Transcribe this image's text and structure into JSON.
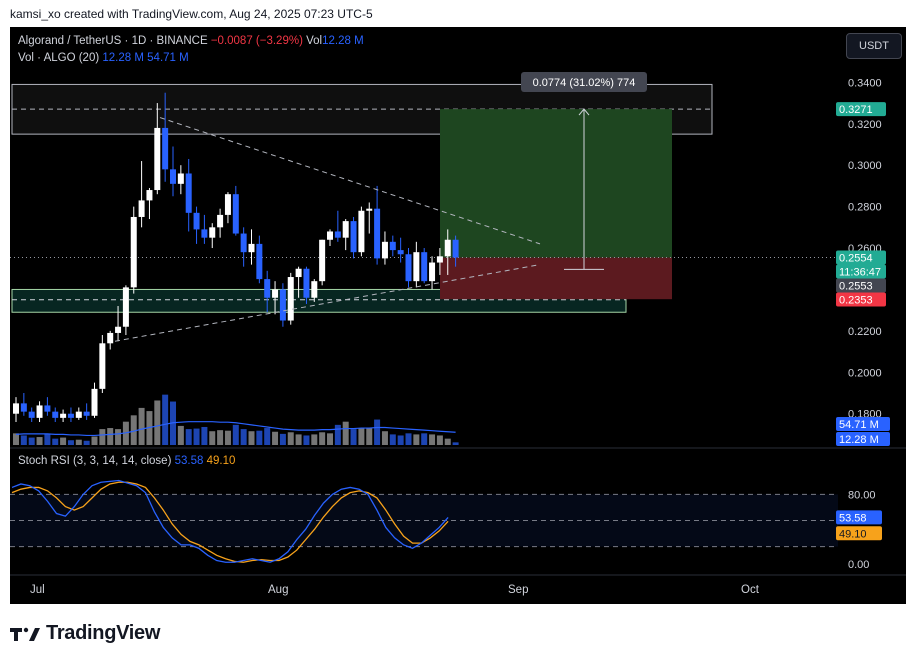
{
  "caption": "kamsi_xo created with TradingView.com, Aug 24, 2025 07:23 UTC-5",
  "header": {
    "symbol": "Algorand / TetherUS · 1D · BINANCE",
    "change": "−0.0087 (−3.29%)",
    "vol_label": "Vol",
    "vol_value": "12.28 M",
    "vol_indicator": "Vol · ALGO (20)",
    "vol_val_1": "12.28 M",
    "vol_val_2": "54.71 M"
  },
  "currency_button": "USDT",
  "stoch_header": {
    "label": "Stoch RSI (3, 3, 14, 14, close)",
    "k_value": "53.58",
    "d_value": "49.10"
  },
  "measure_label": "0.0774 (31.02%) 774",
  "price_axis": {
    "ticks": [
      "0.3400",
      "0.3200",
      "0.3000",
      "0.2800",
      "0.2600",
      "0.2200",
      "0.2000",
      "0.1800"
    ],
    "tick_values": [
      0.34,
      0.32,
      0.3,
      0.28,
      0.26,
      0.22,
      0.2,
      0.18
    ],
    "badges": [
      {
        "text": "0.3271",
        "value": 0.3271,
        "color": "#22ab94"
      },
      {
        "text": "0.2554",
        "value": 0.2554,
        "color": "#22ab94"
      },
      {
        "text": "11:36:47",
        "value": 0.2554,
        "color": "#22ab94"
      },
      {
        "text": "0.2553",
        "value": 0.2553,
        "color": "#434651"
      },
      {
        "text": "0.2353",
        "value": 0.2353,
        "color": "#f23645"
      }
    ],
    "vol_badges": [
      {
        "text": "54.71 M",
        "color": "#2962ff"
      },
      {
        "text": "12.28 M",
        "color": "#2962ff"
      }
    ]
  },
  "rsi_axis": {
    "ticks": [
      "80.00",
      "0.00"
    ],
    "tick_values": [
      80,
      0
    ],
    "badges": [
      {
        "text": "53.58",
        "value": 53.58,
        "color": "#2962ff"
      },
      {
        "text": "49.10",
        "value": 49.1,
        "color": "#f7a21b"
      }
    ]
  },
  "time_axis": [
    "Jul",
    "Aug",
    "Sep",
    "Oct"
  ],
  "brand": "TradingView",
  "colors": {
    "up": "#ffffff",
    "down": "#2962ff",
    "vol_up": "#9e9e9e",
    "vol_down": "#2962ff",
    "stoch_k": "#2962ff",
    "stoch_d": "#f7a21b",
    "profit_zone": "#1e4620",
    "loss_zone": "#5c1a1f"
  },
  "chart_data": {
    "type": "candlestick",
    "title": "Algorand / TetherUS · 1D · BINANCE",
    "ylim": [
      0.176,
      0.345
    ],
    "xlabel": "",
    "ylabel": "",
    "x_ticks": [
      "Jul",
      "Aug",
      "Sep",
      "Oct"
    ],
    "candles": [
      {
        "o": 0.18,
        "h": 0.188,
        "l": 0.176,
        "c": 0.185
      },
      {
        "o": 0.185,
        "h": 0.19,
        "l": 0.179,
        "c": 0.181
      },
      {
        "o": 0.181,
        "h": 0.183,
        "l": 0.176,
        "c": 0.178
      },
      {
        "o": 0.178,
        "h": 0.186,
        "l": 0.176,
        "c": 0.184
      },
      {
        "o": 0.184,
        "h": 0.188,
        "l": 0.179,
        "c": 0.181
      },
      {
        "o": 0.181,
        "h": 0.183,
        "l": 0.176,
        "c": 0.178
      },
      {
        "o": 0.178,
        "h": 0.182,
        "l": 0.176,
        "c": 0.18
      },
      {
        "o": 0.18,
        "h": 0.183,
        "l": 0.176,
        "c": 0.178
      },
      {
        "o": 0.178,
        "h": 0.183,
        "l": 0.177,
        "c": 0.181
      },
      {
        "o": 0.181,
        "h": 0.185,
        "l": 0.177,
        "c": 0.179
      },
      {
        "o": 0.179,
        "h": 0.195,
        "l": 0.178,
        "c": 0.192
      },
      {
        "o": 0.192,
        "h": 0.218,
        "l": 0.19,
        "c": 0.214
      },
      {
        "o": 0.214,
        "h": 0.22,
        "l": 0.211,
        "c": 0.219
      },
      {
        "o": 0.219,
        "h": 0.232,
        "l": 0.215,
        "c": 0.222
      },
      {
        "o": 0.222,
        "h": 0.242,
        "l": 0.218,
        "c": 0.241
      },
      {
        "o": 0.241,
        "h": 0.28,
        "l": 0.238,
        "c": 0.275
      },
      {
        "o": 0.275,
        "h": 0.302,
        "l": 0.27,
        "c": 0.283
      },
      {
        "o": 0.283,
        "h": 0.289,
        "l": 0.274,
        "c": 0.288
      },
      {
        "o": 0.288,
        "h": 0.33,
        "l": 0.286,
        "c": 0.318
      },
      {
        "o": 0.318,
        "h": 0.335,
        "l": 0.292,
        "c": 0.298
      },
      {
        "o": 0.298,
        "h": 0.309,
        "l": 0.285,
        "c": 0.291
      },
      {
        "o": 0.291,
        "h": 0.3,
        "l": 0.286,
        "c": 0.296
      },
      {
        "o": 0.296,
        "h": 0.303,
        "l": 0.268,
        "c": 0.277
      },
      {
        "o": 0.277,
        "h": 0.28,
        "l": 0.262,
        "c": 0.269
      },
      {
        "o": 0.269,
        "h": 0.276,
        "l": 0.262,
        "c": 0.265
      },
      {
        "o": 0.265,
        "h": 0.272,
        "l": 0.26,
        "c": 0.27
      },
      {
        "o": 0.27,
        "h": 0.279,
        "l": 0.265,
        "c": 0.276
      },
      {
        "o": 0.276,
        "h": 0.287,
        "l": 0.272,
        "c": 0.286
      },
      {
        "o": 0.286,
        "h": 0.29,
        "l": 0.266,
        "c": 0.267
      },
      {
        "o": 0.267,
        "h": 0.27,
        "l": 0.251,
        "c": 0.258
      },
      {
        "o": 0.258,
        "h": 0.269,
        "l": 0.252,
        "c": 0.262
      },
      {
        "o": 0.262,
        "h": 0.266,
        "l": 0.243,
        "c": 0.245
      },
      {
        "o": 0.245,
        "h": 0.249,
        "l": 0.229,
        "c": 0.236
      },
      {
        "o": 0.236,
        "h": 0.244,
        "l": 0.228,
        "c": 0.24
      },
      {
        "o": 0.24,
        "h": 0.243,
        "l": 0.222,
        "c": 0.225
      },
      {
        "o": 0.225,
        "h": 0.248,
        "l": 0.223,
        "c": 0.246
      },
      {
        "o": 0.246,
        "h": 0.251,
        "l": 0.236,
        "c": 0.25
      },
      {
        "o": 0.25,
        "h": 0.251,
        "l": 0.233,
        "c": 0.236
      },
      {
        "o": 0.236,
        "h": 0.245,
        "l": 0.234,
        "c": 0.244
      },
      {
        "o": 0.244,
        "h": 0.264,
        "l": 0.242,
        "c": 0.264
      },
      {
        "o": 0.264,
        "h": 0.269,
        "l": 0.261,
        "c": 0.268
      },
      {
        "o": 0.268,
        "h": 0.278,
        "l": 0.263,
        "c": 0.265
      },
      {
        "o": 0.265,
        "h": 0.274,
        "l": 0.259,
        "c": 0.273
      },
      {
        "o": 0.273,
        "h": 0.275,
        "l": 0.255,
        "c": 0.258
      },
      {
        "o": 0.258,
        "h": 0.28,
        "l": 0.256,
        "c": 0.278
      },
      {
        "o": 0.278,
        "h": 0.282,
        "l": 0.267,
        "c": 0.279
      },
      {
        "o": 0.279,
        "h": 0.29,
        "l": 0.252,
        "c": 0.255
      },
      {
        "o": 0.255,
        "h": 0.268,
        "l": 0.252,
        "c": 0.263
      },
      {
        "o": 0.263,
        "h": 0.266,
        "l": 0.256,
        "c": 0.259
      },
      {
        "o": 0.259,
        "h": 0.265,
        "l": 0.253,
        "c": 0.257
      },
      {
        "o": 0.257,
        "h": 0.26,
        "l": 0.241,
        "c": 0.244
      },
      {
        "o": 0.244,
        "h": 0.263,
        "l": 0.241,
        "c": 0.258
      },
      {
        "o": 0.258,
        "h": 0.26,
        "l": 0.243,
        "c": 0.244
      },
      {
        "o": 0.244,
        "h": 0.256,
        "l": 0.24,
        "c": 0.253
      },
      {
        "o": 0.253,
        "h": 0.26,
        "l": 0.247,
        "c": 0.256
      },
      {
        "o": 0.256,
        "h": 0.269,
        "l": 0.247,
        "c": 0.264
      },
      {
        "o": 0.264,
        "h": 0.266,
        "l": 0.251,
        "c": 0.2554
      }
    ],
    "volume_series": [
      {
        "name": "Volume",
        "values": [
          22,
          18,
          14,
          15,
          20,
          12,
          14,
          9,
          10,
          8,
          16,
          30,
          32,
          30,
          44,
          56,
          70,
          64,
          84,
          95,
          82,
          36,
          30,
          31,
          34,
          26,
          28,
          27,
          38,
          30,
          26,
          27,
          32,
          25,
          21,
          24,
          20,
          18,
          20,
          24,
          22,
          38,
          44,
          30,
          32,
          32,
          48,
          26,
          20,
          18,
          22,
          20,
          22,
          20,
          18,
          12,
          5
        ]
      },
      {
        "name": "Vol · ALGO (20)",
        "values": [
          20,
          21,
          21,
          21,
          21,
          20,
          20,
          19,
          19,
          18,
          18,
          19,
          20,
          21,
          23,
          26,
          30,
          33,
          36,
          39,
          42,
          43,
          44,
          44,
          44,
          44,
          43,
          43,
          42,
          40,
          38,
          36,
          34,
          32,
          30,
          29,
          28,
          28,
          28,
          29,
          29,
          30,
          31,
          31,
          32,
          32,
          33,
          33,
          32,
          31,
          30,
          29,
          28,
          27,
          26,
          25,
          24
        ]
      }
    ],
    "stoch_rsi": {
      "series": [
        {
          "name": "K",
          "values": [
            88,
            92,
            90,
            84,
            72,
            58,
            55,
            66,
            80,
            90,
            94,
            95,
            96,
            93,
            90,
            82,
            60,
            42,
            30,
            22,
            22,
            18,
            10,
            4,
            2,
            2,
            4,
            6,
            4,
            2,
            6,
            14,
            28,
            40,
            56,
            70,
            80,
            86,
            88,
            86,
            80,
            62,
            42,
            30,
            22,
            18,
            24,
            33,
            42,
            53.58
          ]
        },
        {
          "name": "D",
          "values": [
            82,
            86,
            88,
            88,
            84,
            76,
            66,
            62,
            66,
            76,
            86,
            92,
            94,
            94,
            92,
            88,
            76,
            62,
            46,
            34,
            26,
            22,
            16,
            10,
            6,
            3,
            2,
            4,
            5,
            4,
            4,
            8,
            16,
            28,
            40,
            54,
            66,
            76,
            82,
            84,
            82,
            76,
            62,
            46,
            32,
            24,
            24,
            30,
            38,
            49.1
          ]
        }
      ],
      "ylim": [
        0,
        100
      ],
      "levels": [
        80,
        50,
        20
      ]
    },
    "annotations": {
      "measure": {
        "from": 0.2497,
        "to": 0.3271,
        "text": "0.0774 (31.02%) 774"
      },
      "resistance_zone": [
        0.315,
        0.339
      ],
      "resistance_line": 0.3271,
      "support_zone": [
        0.229,
        0.24
      ],
      "support_line": 0.235,
      "position_entry": 0.2554,
      "position_target": 0.3271,
      "position_stop": 0.2353
    }
  }
}
